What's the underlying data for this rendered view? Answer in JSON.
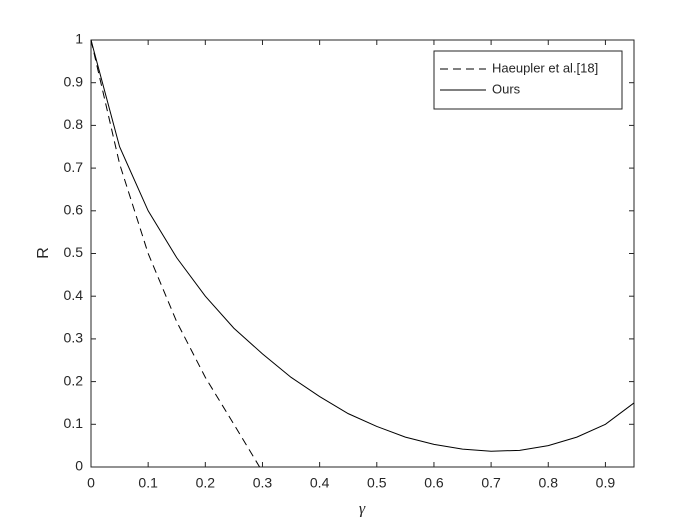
{
  "chart_data": {
    "type": "line",
    "xlabel": "γ",
    "ylabel": "R",
    "xlim": [
      0,
      0.95
    ],
    "ylim": [
      0,
      1
    ],
    "xticks": [
      0,
      0.1,
      0.2,
      0.3,
      0.4,
      0.5,
      0.6,
      0.7,
      0.8,
      0.9
    ],
    "yticks": [
      0,
      0.1,
      0.2,
      0.3,
      0.4,
      0.5,
      0.6,
      0.7,
      0.8,
      0.9,
      1
    ],
    "legend": "upper right",
    "series": [
      {
        "name": "Haeupler et al.[18]",
        "color": "#000000",
        "line_style": "dashed",
        "x": [
          0,
          0.05,
          0.1,
          0.15,
          0.2,
          0.25,
          0.295
        ],
        "values": [
          1,
          0.71,
          0.5,
          0.34,
          0.21,
          0.1,
          0
        ]
      },
      {
        "name": "Ours",
        "color": "#000000",
        "line_style": "solid",
        "x": [
          0,
          0.05,
          0.1,
          0.15,
          0.2,
          0.25,
          0.3,
          0.35,
          0.4,
          0.45,
          0.5,
          0.55,
          0.6,
          0.65,
          0.7,
          0.75,
          0.8,
          0.85,
          0.9,
          0.95
        ],
        "values": [
          1,
          0.75,
          0.6,
          0.49,
          0.4,
          0.325,
          0.265,
          0.21,
          0.165,
          0.125,
          0.095,
          0.07,
          0.053,
          0.042,
          0.037,
          0.039,
          0.05,
          0.07,
          0.1,
          0.15
        ]
      }
    ]
  }
}
